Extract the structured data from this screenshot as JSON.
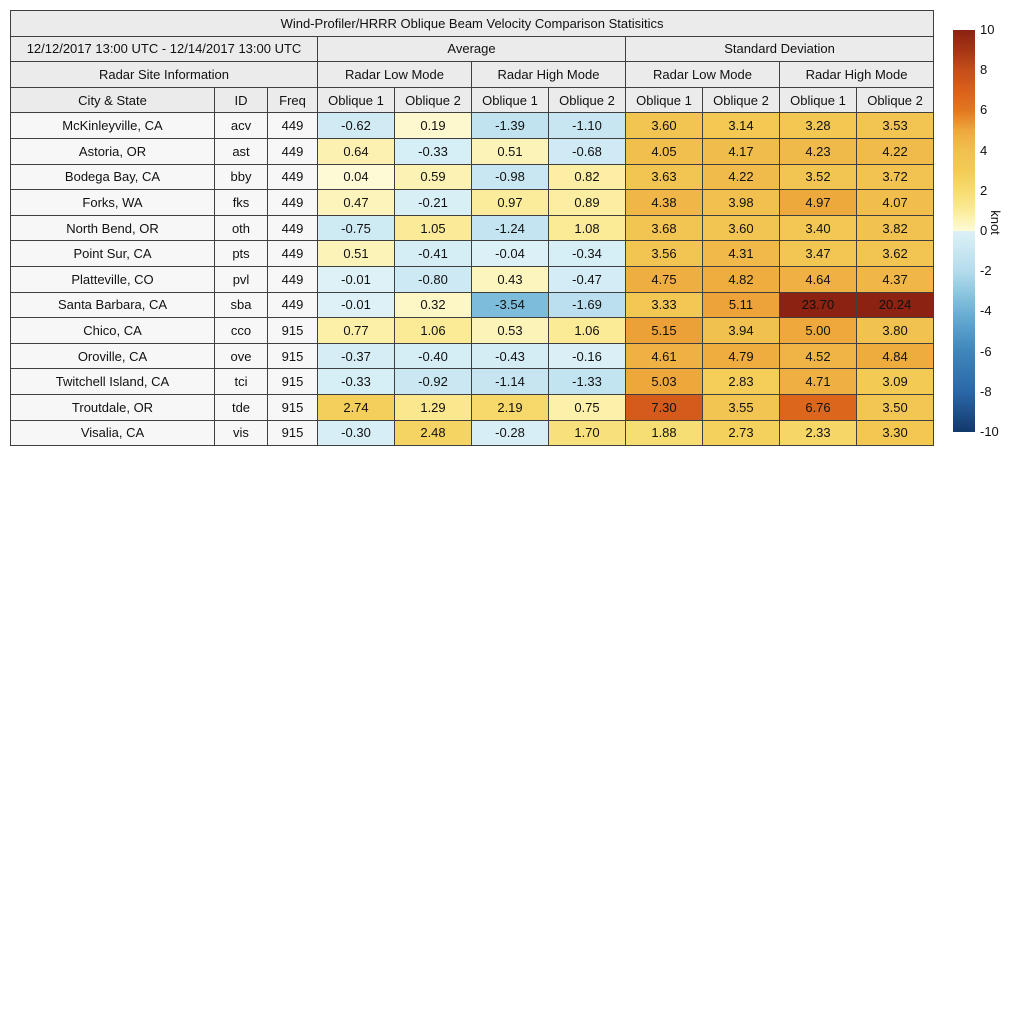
{
  "title": "Wind-Profiler/HRRR Oblique Beam Velocity Comparison Statisitics",
  "header": {
    "date_range": "12/12/2017 13:00 UTC - 12/14/2017 13:00 UTC",
    "group_average": "Average",
    "group_std": "Standard Deviation",
    "site_info": "Radar Site Information",
    "mode_labels": [
      "Radar Low Mode",
      "Radar High Mode",
      "Radar Low Mode",
      "Radar High Mode"
    ],
    "col_city": "City & State",
    "col_id": "ID",
    "col_freq": "Freq",
    "oblique_labels": [
      "Oblique 1",
      "Oblique 2",
      "Oblique 1",
      "Oblique 2",
      "Oblique 1",
      "Oblique 2",
      "Oblique 1",
      "Oblique 2"
    ]
  },
  "chart_data": {
    "type": "table",
    "value_columns": [
      "Average Radar Low Mode Oblique 1",
      "Average Radar Low Mode Oblique 2",
      "Average Radar High Mode Oblique 1",
      "Average Radar High Mode Oblique 2",
      "Std Dev Radar Low Mode Oblique 1",
      "Std Dev Radar Low Mode Oblique 2",
      "Std Dev Radar High Mode Oblique 1",
      "Std Dev Radar High Mode Oblique 2"
    ],
    "rows": [
      {
        "city": "McKinleyville, CA",
        "id": "acv",
        "freq": "449",
        "values": [
          -0.62,
          0.19,
          -1.39,
          -1.1,
          3.6,
          3.14,
          3.28,
          3.53
        ]
      },
      {
        "city": "Astoria, OR",
        "id": "ast",
        "freq": "449",
        "values": [
          0.64,
          -0.33,
          0.51,
          -0.68,
          4.05,
          4.17,
          4.23,
          4.22
        ]
      },
      {
        "city": "Bodega Bay, CA",
        "id": "bby",
        "freq": "449",
        "values": [
          0.04,
          0.59,
          -0.98,
          0.82,
          3.63,
          4.22,
          3.52,
          3.72
        ]
      },
      {
        "city": "Forks, WA",
        "id": "fks",
        "freq": "449",
        "values": [
          0.47,
          -0.21,
          0.97,
          0.89,
          4.38,
          3.98,
          4.97,
          4.07
        ]
      },
      {
        "city": "North Bend, OR",
        "id": "oth",
        "freq": "449",
        "values": [
          -0.75,
          1.05,
          -1.24,
          1.08,
          3.68,
          3.6,
          3.4,
          3.82
        ]
      },
      {
        "city": "Point Sur, CA",
        "id": "pts",
        "freq": "449",
        "values": [
          0.51,
          -0.41,
          -0.04,
          -0.34,
          3.56,
          4.31,
          3.47,
          3.62
        ]
      },
      {
        "city": "Platteville, CO",
        "id": "pvl",
        "freq": "449",
        "values": [
          -0.01,
          -0.8,
          0.43,
          -0.47,
          4.75,
          4.82,
          4.64,
          4.37
        ]
      },
      {
        "city": "Santa Barbara, CA",
        "id": "sba",
        "freq": "449",
        "values": [
          -0.01,
          0.32,
          -3.54,
          -1.69,
          3.33,
          5.11,
          23.7,
          20.24
        ]
      },
      {
        "city": "Chico, CA",
        "id": "cco",
        "freq": "915",
        "values": [
          0.77,
          1.06,
          0.53,
          1.06,
          5.15,
          3.94,
          5.0,
          3.8
        ]
      },
      {
        "city": "Oroville, CA",
        "id": "ove",
        "freq": "915",
        "values": [
          -0.37,
          -0.4,
          -0.43,
          -0.16,
          4.61,
          4.79,
          4.52,
          4.84
        ]
      },
      {
        "city": "Twitchell Island, CA",
        "id": "tci",
        "freq": "915",
        "values": [
          -0.33,
          -0.92,
          -1.14,
          -1.33,
          5.03,
          2.83,
          4.71,
          3.09
        ]
      },
      {
        "city": "Troutdale, OR",
        "id": "tde",
        "freq": "915",
        "values": [
          2.74,
          1.29,
          2.19,
          0.75,
          7.3,
          3.55,
          6.76,
          3.5
        ]
      },
      {
        "city": "Visalia, CA",
        "id": "vis",
        "freq": "915",
        "values": [
          -0.3,
          2.48,
          -0.28,
          1.7,
          1.88,
          2.73,
          2.33,
          3.3
        ]
      }
    ],
    "colorbar": {
      "min": -10,
      "max": 10,
      "ticks": [
        10,
        8,
        6,
        4,
        2,
        0,
        -2,
        -4,
        -6,
        -8,
        -10
      ],
      "label": "knot"
    },
    "colormap": {
      "positive": [
        "#FEFBD9",
        "#FBEC9A",
        "#F7DC6F",
        "#F3CB55",
        "#F1C04F",
        "#EEA83C",
        "#E2771F",
        "#DA601B",
        "#C54E1A",
        "#A53414",
        "#8B2212"
      ],
      "negative": [
        "#DDF1F7",
        "#C9E7F2",
        "#B4DCEC",
        "#8FC8E0",
        "#6FB1D6",
        "#549BC9",
        "#3F86BB",
        "#3577B1",
        "#2B67A8",
        "#1F508A",
        "#12386B"
      ]
    },
    "colors": {
      "header_bg": "#EBEBEB",
      "site_bg": "#F7F7F7",
      "border": "#3F3F3F"
    }
  }
}
